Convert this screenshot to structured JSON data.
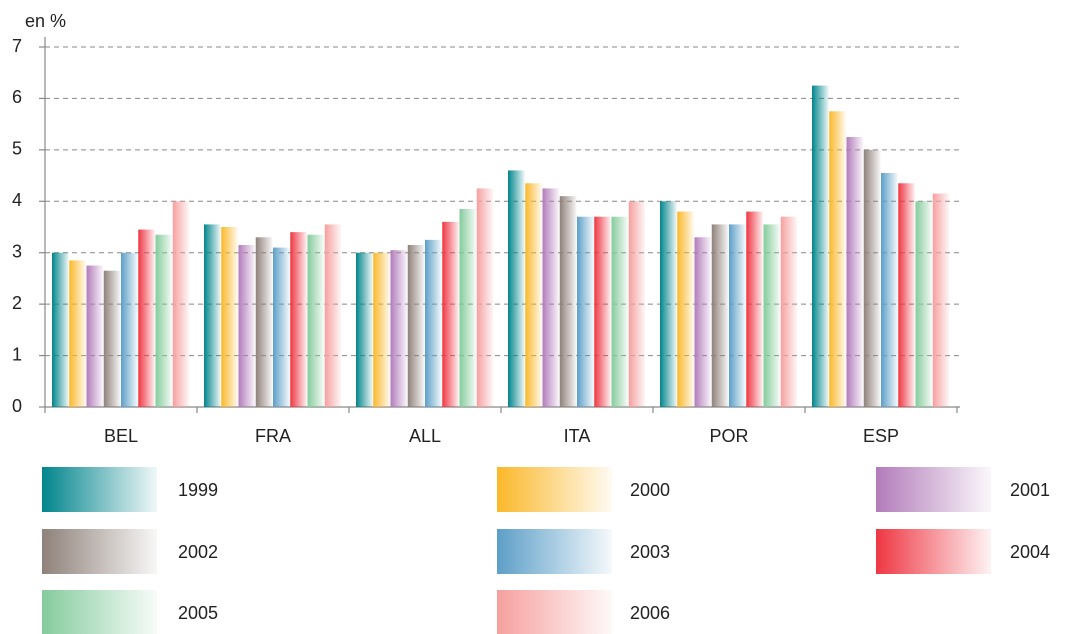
{
  "chart_data": {
    "type": "bar",
    "y_axis_label": "en %",
    "categories": [
      "BEL",
      "FRA",
      "ALL",
      "ITA",
      "POR",
      "ESP"
    ],
    "series": [
      {
        "name": "1999",
        "color": "#00858c",
        "values": [
          3.0,
          3.55,
          3.0,
          4.6,
          4.0,
          6.25
        ]
      },
      {
        "name": "2000",
        "color": "#fbb82a",
        "values": [
          2.85,
          3.5,
          3.0,
          4.35,
          3.8,
          5.75
        ]
      },
      {
        "name": "2001",
        "color": "#b27cba",
        "values": [
          2.75,
          3.15,
          3.05,
          4.25,
          3.3,
          5.25
        ]
      },
      {
        "name": "2002",
        "color": "#8f817a",
        "values": [
          2.65,
          3.3,
          3.15,
          4.1,
          3.55,
          5.0
        ]
      },
      {
        "name": "2003",
        "color": "#5d9fc8",
        "values": [
          3.0,
          3.1,
          3.25,
          3.7,
          3.55,
          4.55
        ]
      },
      {
        "name": "2004",
        "color": "#ee3743",
        "values": [
          3.45,
          3.4,
          3.6,
          3.7,
          3.8,
          4.35
        ]
      },
      {
        "name": "2005",
        "color": "#85cb9d",
        "values": [
          3.35,
          3.35,
          3.85,
          3.7,
          3.55,
          4.0
        ]
      },
      {
        "name": "2006",
        "color": "#f6a09f",
        "values": [
          4.0,
          3.55,
          4.25,
          4.0,
          3.7,
          4.15
        ]
      }
    ],
    "ylim": [
      0,
      7
    ],
    "yticks": [
      0,
      1,
      2,
      3,
      4,
      5,
      6,
      7
    ],
    "grid": true
  }
}
